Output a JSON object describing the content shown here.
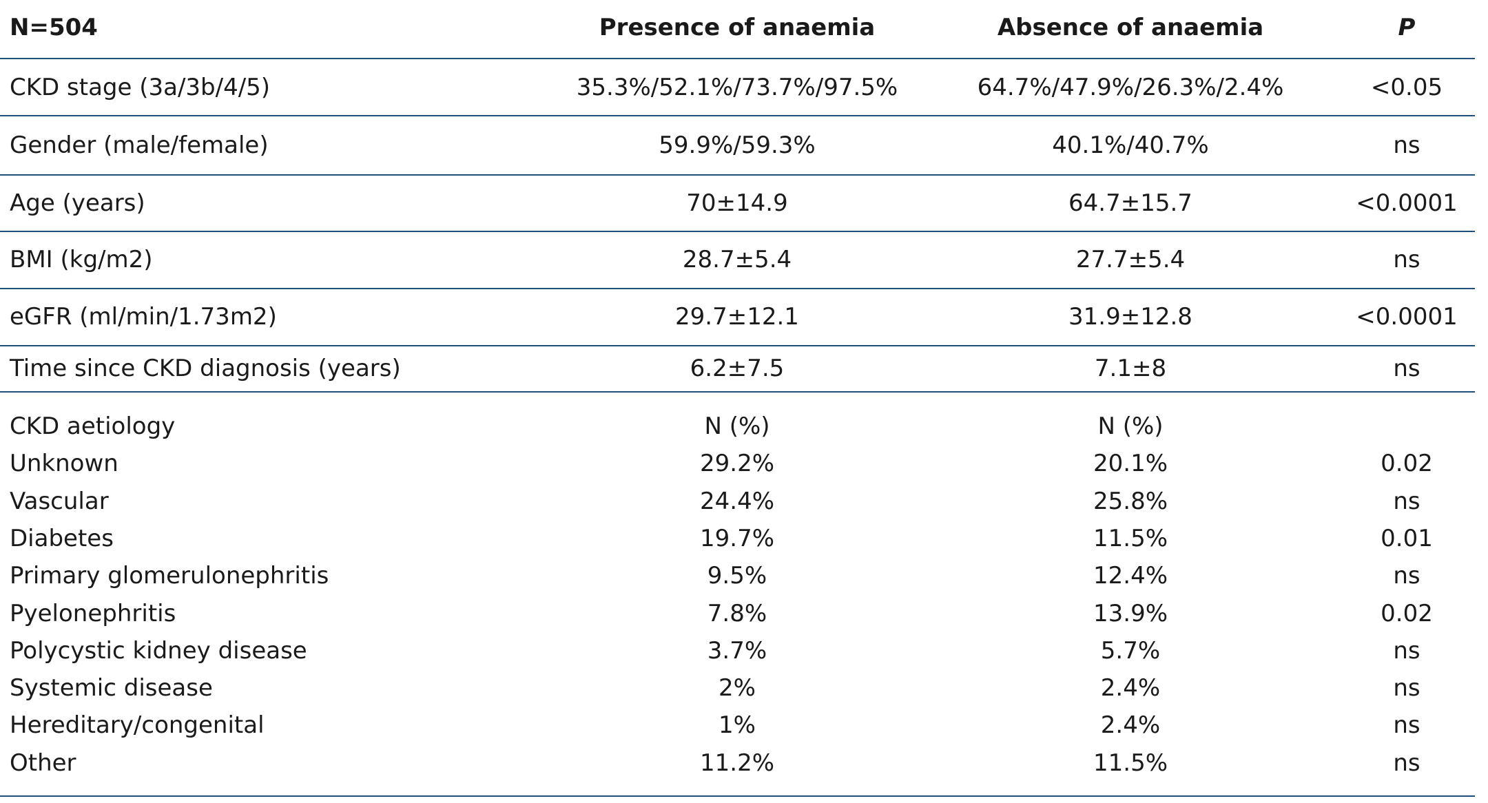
{
  "table": {
    "header": [
      "N=504",
      "Presence of anaemia",
      "Absence of anaemia",
      "P"
    ],
    "rows": [
      [
        "CKD stage (3a/3b/4/5)",
        "35.3%/52.1%/73.7%/97.5%",
        "64.7%/47.9%/26.3%/2.4%",
        "<0.05"
      ],
      [
        "Gender (male/female)",
        "59.9%/59.3%",
        "40.1%/40.7%",
        "ns"
      ],
      [
        "Age (years)",
        "70±14.9",
        "64.7±15.7",
        "<0.0001"
      ],
      [
        "BMI (kg/m2)",
        "28.7±5.4",
        "27.7±5.4",
        "ns"
      ],
      [
        "eGFR (ml/min/1.73m2)",
        "29.7±12.1",
        "31.9±12.8",
        "<0.0001"
      ],
      [
        "Time since CKD diagnosis (years)",
        "6.2±7.5",
        "7.1±8",
        "ns"
      ]
    ],
    "aetiology_rows": [
      [
        "CKD aetiology",
        "N (%)",
        "N (%)"
      ],
      [
        "Unknown",
        "29.2%",
        "20.1%",
        "0.02"
      ],
      [
        "Vascular",
        "24.4%",
        "25.8%",
        "ns"
      ],
      [
        "Diabetes",
        "19.7%",
        "11.5%",
        "0.01"
      ],
      [
        "Primary glomerulonephritis",
        "9.5%",
        "12.4%",
        "ns"
      ],
      [
        "Pyelonephritis",
        "7.8%",
        "13.9%",
        "0.02"
      ],
      [
        "Polycystic kidney disease",
        "3.7%",
        "5.7%",
        "ns"
      ],
      [
        "Systemic disease",
        "2%",
        "2.4%",
        "ns"
      ],
      [
        "Hereditary/congenital",
        "1%",
        "2.4%",
        "ns"
      ],
      [
        "Other",
        "11.2%",
        "11.5%",
        "ns"
      ]
    ]
  }
}
